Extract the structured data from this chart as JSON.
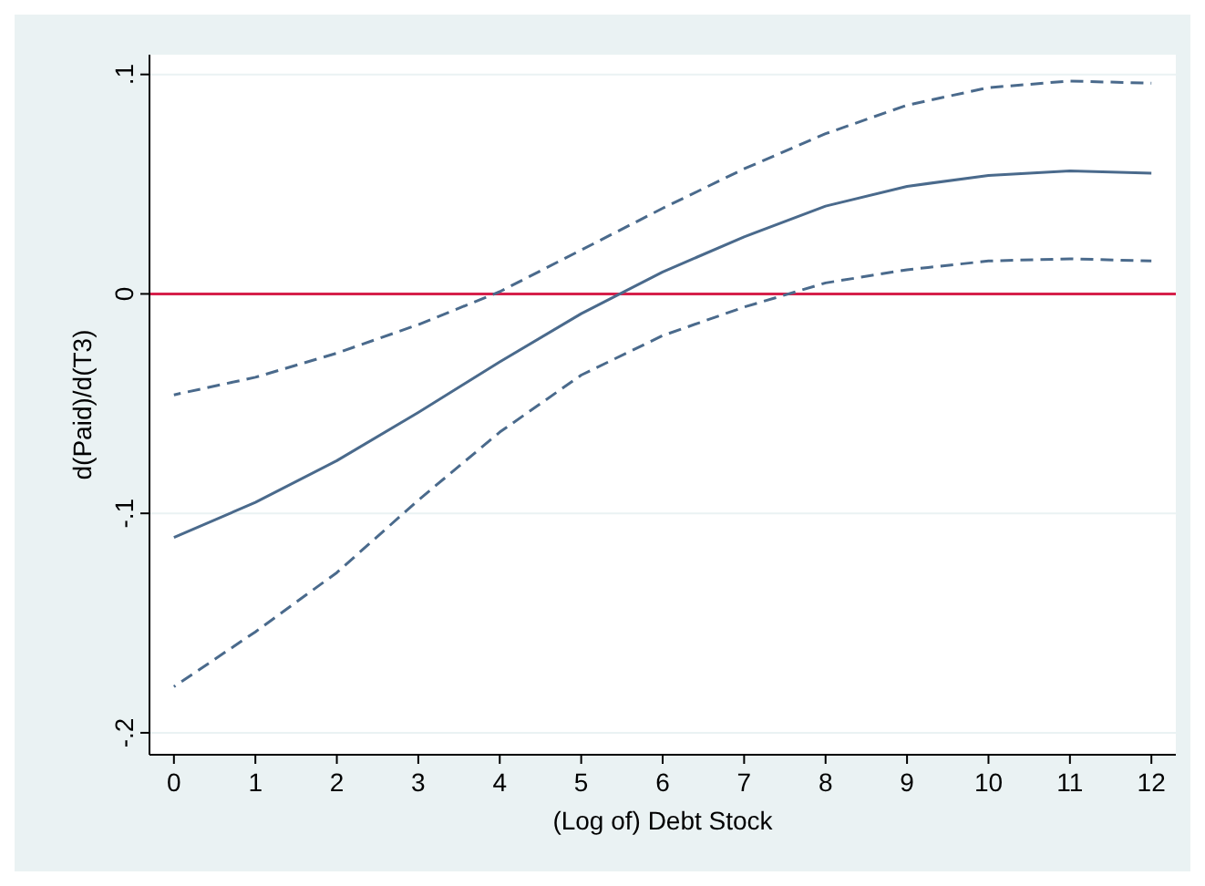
{
  "chart_data": {
    "type": "line",
    "xlabel": "(Log of) Debt Stock",
    "ylabel": "d(Paid)/d(T3)",
    "x": [
      0,
      1,
      2,
      3,
      4,
      5,
      6,
      7,
      8,
      9,
      10,
      11,
      12
    ],
    "series": [
      {
        "color": "#4a6a8c",
        "line_style": "solid",
        "values": [
          -0.111,
          -0.095,
          -0.076,
          -0.054,
          -0.031,
          -0.009,
          0.01,
          0.026,
          0.04,
          0.049,
          0.054,
          0.056,
          0.055
        ]
      },
      {
        "color": "#4a6a8c",
        "line_style": "dashed",
        "values": [
          -0.046,
          -0.038,
          -0.027,
          -0.014,
          0.001,
          0.02,
          0.039,
          0.057,
          0.073,
          0.086,
          0.094,
          0.097,
          0.096
        ]
      },
      {
        "color": "#4a6a8c",
        "line_style": "dashed",
        "values": [
          -0.179,
          -0.154,
          -0.127,
          -0.094,
          -0.063,
          -0.037,
          -0.019,
          -0.006,
          0.005,
          0.011,
          0.015,
          0.016,
          0.015
        ]
      }
    ],
    "xlim": [
      -0.3,
      12.3
    ],
    "xticks": [
      0,
      1,
      2,
      3,
      4,
      5,
      6,
      7,
      8,
      9,
      10,
      11,
      12
    ],
    "ylim": [
      -0.21,
      0.109
    ],
    "yticks": [
      {
        "value": -0.2,
        "label": "-.2"
      },
      {
        "value": -0.1,
        "label": "-.1"
      },
      0,
      {
        "value": 0.1,
        "label": ".1"
      }
    ],
    "grid": "y",
    "ref_lines": [
      {
        "axis": "y",
        "value": 0,
        "color": "#d6204a"
      }
    ]
  }
}
